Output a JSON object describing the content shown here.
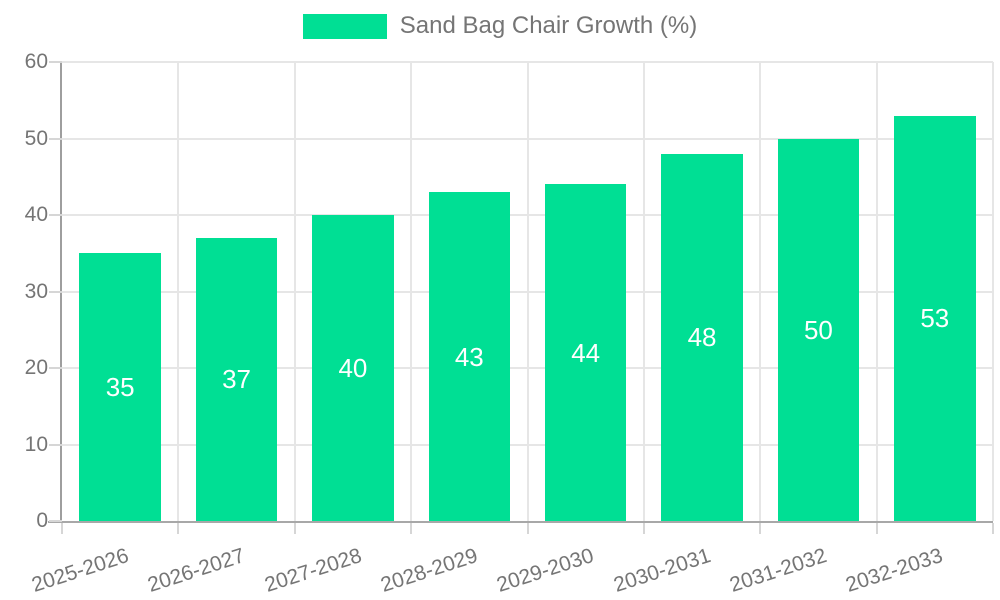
{
  "chart_data": {
    "type": "bar",
    "title": "Sand Bag Chair Growth (%)",
    "categories": [
      "2025-2026",
      "2026-2027",
      "2027-2028",
      "2028-2029",
      "2029-2030",
      "2030-2031",
      "2031-2032",
      "2032-2033"
    ],
    "values": [
      35,
      37,
      40,
      43,
      44,
      48,
      50,
      53
    ],
    "xlabel": "",
    "ylabel": "",
    "ylim": [
      0,
      60
    ],
    "yticks": [
      0,
      10,
      20,
      30,
      40,
      50,
      60
    ],
    "grid": true,
    "legend_position": "top-center",
    "bar_color": "#00DF94",
    "data_label_color": "#FFFFFF",
    "axis_text_color": "#757575"
  }
}
